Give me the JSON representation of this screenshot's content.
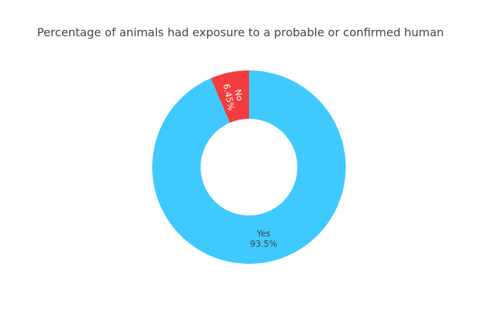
{
  "chart_data": {
    "type": "pie",
    "title": "Percentage of animals had exposure to a probable or confirmed human",
    "hole": 0.5,
    "slices": [
      {
        "label": "Yes",
        "value": 93.5,
        "text": "93.5%",
        "color": "#40C9FF",
        "text_color": "#444444"
      },
      {
        "label": "No",
        "value": 6.45,
        "text": "6.45%",
        "color": "#F33C3F",
        "text_color": "#ffffff"
      }
    ],
    "legend": "none"
  }
}
